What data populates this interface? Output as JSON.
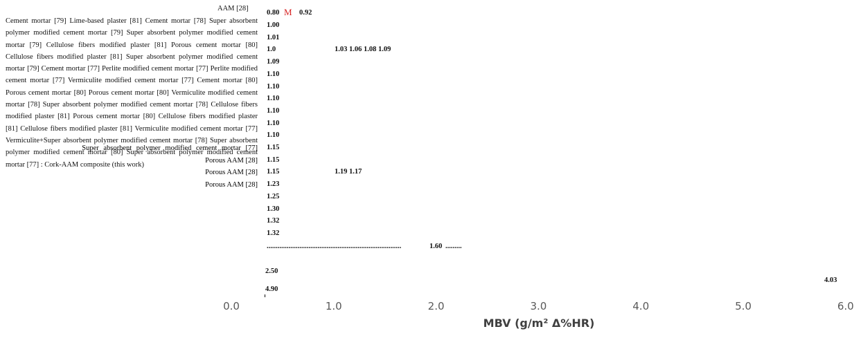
{
  "labels": {
    "top": "AAM [28]",
    "paragraph": "Cement mortar [79] Lime-based plaster [81] Cement mortar [78] Super absorbent polymer modified cement mortar [79] Super absorbent polymer modified cement mortar [79] Cellulose fibers modified plaster [81] Porous cement mortar [80] Cellulose fibers modified plaster [81] Super absorbent polymer modified cement mortar [79] Cement mortar [77] Perlite modified cement mortar [77] Perlite modified cement mortar [77] Vermiculite modified cement mortar [77] Cement mortar [80] Porous cement mortar [80] Porous cement mortar [80] Vermiculite modified cement mortar [78] Super absorbent polymer modified cement mortar [78] Cellulose fibers modified plaster [81] Porous cement mortar [80] Cellulose fibers modified plaster [81] Cellulose fibers modified plaster [81] Vermiculite modified cement mortar [77] Vermiculite+Super absorbent polymer modified cement mortar [78] Super absorbent polymer modified cement mortar [80] Super absorbent polymer modified cement mortar [77] :  Cork-AAM composite (this work)",
    "lines": [
      "Super absorbent polymer modified cement mortar [77]",
      "Porous AAM [28]",
      "Porous AAM [28]",
      "Porous AAM [28]"
    ]
  },
  "first_row": {
    "value": "0.80",
    "marker": "M",
    "extra": "0.92"
  },
  "rows": [
    {
      "value": "1.00"
    },
    {
      "value": "1.01"
    },
    {
      "value": "1.0",
      "extra": "1.03 1.06 1.08 1.09"
    },
    {
      "value": "1.09"
    },
    {
      "value": "1.10"
    },
    {
      "value": "1.10"
    },
    {
      "value": "1.10"
    },
    {
      "value": "1.10"
    },
    {
      "value": "1.10"
    },
    {
      "value": "1.10"
    },
    {
      "value": "1.15"
    },
    {
      "value": "1.15"
    },
    {
      "value": "1.15",
      "extra": "1.19 1.17"
    },
    {
      "value": "1.23"
    },
    {
      "value": "1.25"
    },
    {
      "value": "1.30"
    },
    {
      "value": "1.32"
    },
    {
      "value": "1.32"
    }
  ],
  "dotted_value": "1.60",
  "low_values": [
    "2.50",
    "4.90"
  ],
  "right_value": "4.03",
  "axis": {
    "ticks": [
      "0.0",
      "1.0",
      "2.0",
      "3.0",
      "4.0",
      "5.0",
      "6.0"
    ],
    "title": "MBV (g/m² Δ%HR)"
  }
}
